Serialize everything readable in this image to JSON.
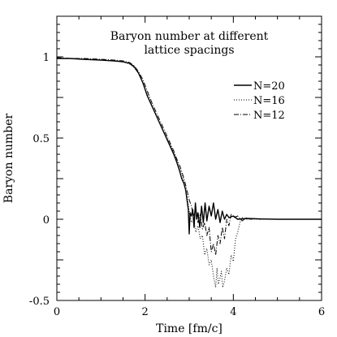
{
  "chart_data": {
    "type": "line",
    "title_lines": [
      "Baryon number at different",
      "lattice spacings"
    ],
    "xlabel": "Time [fm/c]",
    "ylabel": "Baryon number",
    "xlim": [
      0,
      6
    ],
    "ylim": [
      -0.5,
      1.25
    ],
    "x_ticks": [
      0,
      2,
      4,
      6
    ],
    "x_tick_labels": [
      "0",
      "2",
      "4",
      "6"
    ],
    "y_ticks": [
      -0.5,
      0,
      0.5,
      1
    ],
    "y_tick_labels": [
      "-0.5",
      "0",
      "0.5",
      "1"
    ],
    "grid": false,
    "legend_position": "top-right",
    "series": [
      {
        "name": "N=20",
        "style": "solid",
        "x": [
          0,
          0.3,
          0.6,
          1.0,
          1.3,
          1.5,
          1.65,
          1.75,
          1.85,
          1.95,
          2.05,
          2.15,
          2.25,
          2.35,
          2.45,
          2.55,
          2.65,
          2.72,
          2.78,
          2.83,
          2.88,
          2.92,
          2.95,
          2.98,
          3.0,
          3.02,
          3.05,
          3.08,
          3.11,
          3.14,
          3.17,
          3.2,
          3.24,
          3.28,
          3.32,
          3.36,
          3.4,
          3.45,
          3.5,
          3.55,
          3.6,
          3.65,
          3.7,
          3.75,
          3.8,
          3.85,
          3.9,
          4.0,
          4.1,
          4.3,
          4.6,
          5.0,
          6.0
        ],
        "y": [
          0.99,
          0.99,
          0.985,
          0.98,
          0.975,
          0.97,
          0.96,
          0.94,
          0.9,
          0.84,
          0.76,
          0.7,
          0.64,
          0.58,
          0.52,
          0.46,
          0.4,
          0.35,
          0.3,
          0.25,
          0.22,
          0.18,
          0.12,
          0.06,
          -0.09,
          0.04,
          0.02,
          0.06,
          -0.05,
          0.1,
          0.0,
          0.04,
          -0.05,
          0.08,
          -0.02,
          0.1,
          -0.01,
          0.08,
          0.02,
          0.1,
          0.0,
          0.06,
          -0.02,
          0.05,
          0.0,
          0.03,
          0.01,
          0.02,
          0.0,
          0.005,
          0.002,
          0.0,
          0.0
        ]
      },
      {
        "name": "N=16",
        "style": "dotted",
        "x": [
          0,
          0.3,
          0.6,
          1.0,
          1.3,
          1.5,
          1.65,
          1.75,
          1.85,
          1.95,
          2.05,
          2.15,
          2.25,
          2.35,
          2.45,
          2.55,
          2.65,
          2.72,
          2.78,
          2.84,
          2.9,
          2.95,
          3.0,
          3.05,
          3.1,
          3.15,
          3.2,
          3.25,
          3.3,
          3.35,
          3.4,
          3.45,
          3.5,
          3.55,
          3.6,
          3.63,
          3.66,
          3.7,
          3.73,
          3.76,
          3.8,
          3.85,
          3.9,
          3.95,
          4.0,
          4.05,
          4.1,
          4.15,
          4.2,
          4.3,
          4.5,
          5.0,
          6.0
        ],
        "y": [
          0.99,
          0.99,
          0.985,
          0.98,
          0.975,
          0.968,
          0.955,
          0.935,
          0.9,
          0.84,
          0.77,
          0.7,
          0.64,
          0.58,
          0.52,
          0.47,
          0.41,
          0.36,
          0.31,
          0.28,
          0.2,
          0.14,
          0.05,
          -0.02,
          0.0,
          -0.08,
          -0.04,
          -0.12,
          -0.1,
          -0.22,
          -0.18,
          -0.28,
          -0.25,
          -0.35,
          -0.42,
          -0.3,
          -0.4,
          -0.36,
          -0.32,
          -0.42,
          -0.38,
          -0.3,
          -0.34,
          -0.22,
          -0.26,
          -0.12,
          -0.08,
          -0.02,
          0.01,
          0.0,
          0.0,
          0.0,
          0.0
        ]
      },
      {
        "name": "N=12",
        "style": "dashdot",
        "x": [
          0,
          0.3,
          0.6,
          1.0,
          1.3,
          1.5,
          1.65,
          1.75,
          1.85,
          1.95,
          2.05,
          2.15,
          2.25,
          2.35,
          2.45,
          2.55,
          2.65,
          2.72,
          2.8,
          2.87,
          2.93,
          3.0,
          3.05,
          3.1,
          3.15,
          3.2,
          3.25,
          3.3,
          3.35,
          3.4,
          3.45,
          3.5,
          3.55,
          3.6,
          3.65,
          3.7,
          3.75,
          3.8,
          3.85,
          3.9,
          3.95,
          4.0,
          4.1,
          4.2,
          4.3,
          4.4,
          4.5,
          4.6,
          4.8,
          5.0,
          6.0
        ],
        "y": [
          0.995,
          0.99,
          0.99,
          0.985,
          0.98,
          0.975,
          0.965,
          0.945,
          0.91,
          0.86,
          0.79,
          0.72,
          0.66,
          0.6,
          0.54,
          0.48,
          0.42,
          0.37,
          0.32,
          0.26,
          0.2,
          0.12,
          0.08,
          0.02,
          0.06,
          -0.02,
          0.03,
          -0.06,
          -0.02,
          -0.1,
          -0.05,
          -0.2,
          -0.15,
          -0.22,
          -0.1,
          -0.15,
          -0.05,
          -0.12,
          0.0,
          -0.04,
          0.03,
          0.01,
          0.02,
          -0.01,
          0.01,
          0.0,
          0.005,
          0.0,
          0.0,
          0.0,
          0.0
        ]
      }
    ]
  }
}
